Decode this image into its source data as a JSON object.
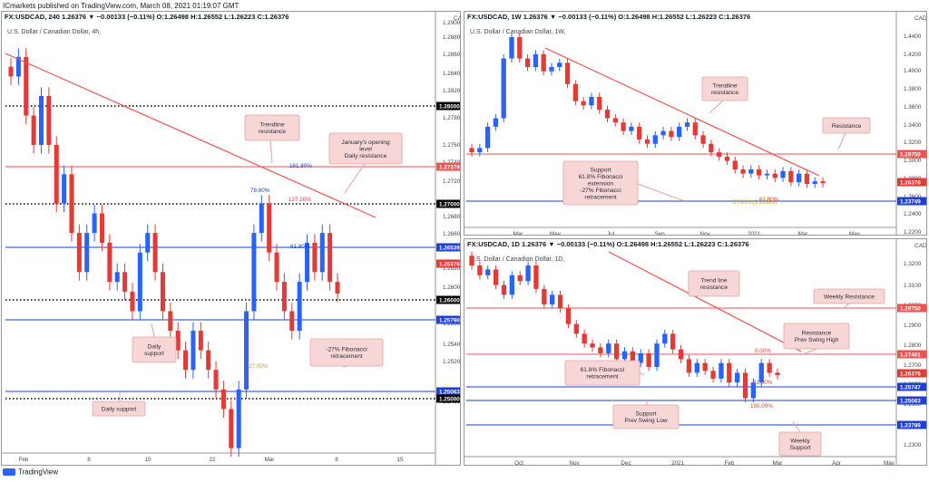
{
  "header": {
    "line1": "ICmarkets published on TradingView.com, March 08, 2021 01:19:07 GMT"
  },
  "footer": {
    "brand": "TradingView"
  },
  "colors": {
    "up": "#2962ff",
    "down": "#e53935",
    "trend": "#ef5350",
    "blueline": "#1e3fd6",
    "callout_bg": "#f7d6d6",
    "callout_border": "#e8a0a0",
    "black": "#000000"
  },
  "charts": [
    {
      "id": "4h",
      "symbol_label": "FX:USDCAD, 240",
      "ohlc": "1.26376 ▼ −0.00133 (−0.11%) O:1.26498 H:1.26552 L:1.26223 C:1.26376",
      "instrument": "U.S. Dollar / Canadian Dollar, 4h,",
      "currency_label": "CAD",
      "y_axis_ticks": [
        "1.2900",
        "1.2880",
        "1.2860",
        "1.2840",
        "1.2820",
        "1.2780",
        "1.2760",
        "1.2740",
        "1.2720",
        "1.2680",
        "1.2660",
        "1.2620",
        "1.2600",
        "1.2560",
        "1.2540",
        "1.2520",
        "1.2480"
      ],
      "x_axis_ticks": [
        "Feb",
        "8",
        "15",
        "22",
        "Mar",
        "8",
        "15"
      ],
      "price_tags": [
        {
          "label": "1.28000",
          "color": "#000000",
          "style": "dotted"
        },
        {
          "label": "1.27379",
          "color": "#ef5350",
          "style": "solid"
        },
        {
          "label": "1.27000",
          "color": "#000000",
          "style": "dotted"
        },
        {
          "label": "1.26539",
          "color": "#1e3fd6",
          "style": "solid"
        },
        {
          "label": "1.26376",
          "color": "#e53935",
          "style": "none"
        },
        {
          "label": "1.26000",
          "color": "#000000",
          "style": "dotted"
        },
        {
          "label": "1.25790",
          "color": "#1e3fd6",
          "style": "solid"
        },
        {
          "label": "1.25063",
          "color": "#1e3fd6",
          "style": "solid"
        },
        {
          "label": "1.25000",
          "color": "#000000",
          "style": "dotted"
        }
      ],
      "fib_labels": [
        "161.80%",
        "127.20%",
        "78.60%",
        "61.80%",
        "-27.00%"
      ],
      "annotations": [
        {
          "lines": [
            "Trendline",
            "resistance"
          ]
        },
        {
          "lines": [
            "January's opening",
            "level",
            "Daily resistance"
          ]
        },
        {
          "lines": [
            "Daily",
            "support"
          ]
        },
        {
          "lines": [
            "-27% Fibonacci",
            "retracement"
          ]
        },
        {
          "lines": [
            "Daily support"
          ]
        }
      ]
    },
    {
      "id": "1w",
      "symbol_label": "FX:USDCAD, 1W",
      "ohlc": "1.26376 ▼ −0.00133 (−0.11%) O:1.26498 H:1.26552 L:1.26223 C:1.26376",
      "instrument": "U.S. Dollar / Canadian Dollar, 1W,",
      "currency_label": "CAD",
      "y_axis_ticks": [
        "1.4400",
        "1.4200",
        "1.4000",
        "1.3800",
        "1.3600",
        "1.3400",
        "1.3200",
        "1.3000",
        "1.2800",
        "1.2600",
        "1.2400",
        "1.2200"
      ],
      "x_axis_ticks": [
        "Mar",
        "May",
        "Jul",
        "Sep",
        "Nov",
        "2021",
        "Mar",
        "May"
      ],
      "price_tags": [
        {
          "label": "1.29750",
          "color": "#ef5350",
          "style": "solid"
        },
        {
          "label": "1.26376",
          "color": "#e53935",
          "style": "none"
        },
        {
          "label": "1.23749",
          "color": "#1e3fd6",
          "style": "solid"
        }
      ],
      "fib_labels": [
        "61.80%",
        "-27.00%(1.23386)"
      ],
      "annotations": [
        {
          "lines": [
            "Trendline",
            "resistance"
          ]
        },
        {
          "lines": [
            "Resistance"
          ]
        },
        {
          "lines": [
            "Support",
            "61.8% Fibonacci",
            "extension",
            "-27% Fibonacci",
            "retracement"
          ]
        }
      ]
    },
    {
      "id": "1d",
      "symbol_label": "FX:USDCAD, 1D",
      "ohlc": "1.26376 ▼ −0.00133 (−0.11%) O:1.26498 H:1.26552 L:1.26223 C:1.26376",
      "instrument": "U.S. Dollar / Canadian Dollar, 1D,",
      "currency_label": "CAD",
      "y_axis_ticks": [
        "1.3200",
        "1.3100",
        "1.3000",
        "1.2900",
        "1.2800",
        "1.2700",
        "1.2600",
        "1.2500",
        "1.2400",
        "1.2300"
      ],
      "x_axis_ticks": [
        "Oct",
        "Nov",
        "Dec",
        "2021",
        "Feb",
        "Mar",
        "Apr",
        "May"
      ],
      "price_tags": [
        {
          "label": "1.29750",
          "color": "#ef5350",
          "style": "solid"
        },
        {
          "label": "1.27401",
          "color": "#ef5350",
          "style": "solid"
        },
        {
          "label": "1.26376",
          "color": "#e53935",
          "style": "none"
        },
        {
          "label": "1.25747",
          "color": "#1e3fd6",
          "style": "solid"
        },
        {
          "label": "1.25063",
          "color": "#1e3fd6",
          "style": "solid"
        },
        {
          "label": "1.23789",
          "color": "#1e3fd6",
          "style": "solid"
        }
      ],
      "fib_labels": [
        "0.00%",
        "61.80%",
        "100.00%"
      ],
      "annotations": [
        {
          "lines": [
            "Trend line",
            "resistance"
          ]
        },
        {
          "lines": [
            "Weekly Resistance"
          ]
        },
        {
          "lines": [
            "Resistance",
            "Prev Swing High"
          ]
        },
        {
          "lines": [
            "61.8% Fibonacci",
            "retracement"
          ]
        },
        {
          "lines": [
            "Support",
            "Prev Swing Low"
          ]
        },
        {
          "lines": [
            "Weekly",
            "Support"
          ]
        }
      ]
    }
  ],
  "chart_data": [
    {
      "type": "candlestick",
      "title": "FX:USDCAD, 240",
      "instrument": "U.S. Dollar / Canadian Dollar, 4h",
      "ylim": [
        1.2475,
        1.2915
      ],
      "x_range": [
        "Jan 29",
        "Mar 15"
      ],
      "last_close": 1.26376,
      "levels": [
        1.28,
        1.27379,
        1.27,
        1.26539,
        1.26,
        1.2579,
        1.25063,
        1.25
      ],
      "closes_approx": [
        1.286,
        1.288,
        1.282,
        1.279,
        1.284,
        1.279,
        1.273,
        1.276,
        1.27,
        1.266,
        1.27,
        1.272,
        1.269,
        1.265,
        1.266,
        1.264,
        1.262,
        1.268,
        1.27,
        1.266,
        1.262,
        1.26,
        1.258,
        1.256,
        1.26,
        1.258,
        1.256,
        1.254,
        1.252,
        1.248,
        1.254,
        1.262,
        1.27,
        1.273,
        1.268,
        1.265,
        1.262,
        1.26,
        1.265,
        1.269,
        1.266,
        1.27,
        1.265,
        1.2638
      ]
    },
    {
      "type": "candlestick",
      "title": "FX:USDCAD, 1W",
      "instrument": "U.S. Dollar / Canadian Dollar, 1W",
      "ylim": [
        1.212,
        1.452
      ],
      "x_range": [
        "Feb 2020",
        "May 2021"
      ],
      "last_close": 1.26376,
      "levels": [
        1.2975,
        1.23749
      ],
      "closes_approx": [
        1.3,
        1.305,
        1.33,
        1.34,
        1.41,
        1.435,
        1.41,
        1.4,
        1.415,
        1.395,
        1.4,
        1.405,
        1.38,
        1.36,
        1.355,
        1.365,
        1.35,
        1.34,
        1.335,
        1.325,
        1.33,
        1.315,
        1.31,
        1.32,
        1.325,
        1.318,
        1.33,
        1.335,
        1.32,
        1.31,
        1.3,
        1.295,
        1.29,
        1.28,
        1.275,
        1.28,
        1.273,
        1.275,
        1.27,
        1.278,
        1.265,
        1.275,
        1.263,
        1.266,
        1.2638
      ]
    },
    {
      "type": "candlestick",
      "title": "FX:USDCAD, 1D",
      "instrument": "U.S. Dollar / Canadian Dollar, 1D",
      "ylim": [
        1.222,
        1.327
      ],
      "x_range": [
        "Sep 2020",
        "May 2021"
      ],
      "last_close": 1.26376,
      "levels": [
        1.2975,
        1.27401,
        1.25747,
        1.25063,
        1.23789
      ],
      "closes_approx": [
        1.32,
        1.315,
        1.318,
        1.31,
        1.305,
        1.315,
        1.312,
        1.32,
        1.308,
        1.3,
        1.305,
        1.298,
        1.29,
        1.285,
        1.28,
        1.278,
        1.275,
        1.28,
        1.272,
        1.276,
        1.27,
        1.275,
        1.268,
        1.28,
        1.285,
        1.277,
        1.272,
        1.265,
        1.27,
        1.266,
        1.262,
        1.27,
        1.26,
        1.265,
        1.252,
        1.26,
        1.27,
        1.265,
        1.2638
      ]
    }
  ]
}
